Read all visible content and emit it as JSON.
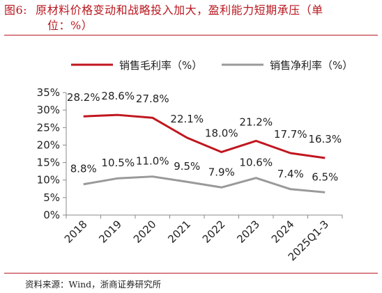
{
  "header": {
    "figure_number": "图6:",
    "title_line1": "原材料价格变动和战略投入加大，盈利能力短期承压（单",
    "title_line2": "位：%）"
  },
  "footer": {
    "source": "资料来源：Wind，浙商证券研究所"
  },
  "colors": {
    "accent": "#b8171f",
    "gross_margin": "#c0161e",
    "net_margin": "#999999"
  },
  "chart_data": {
    "type": "line",
    "categories": [
      "2018",
      "2019",
      "2020",
      "2021",
      "2022",
      "2023",
      "2024",
      "2025Q1-3"
    ],
    "yticks": [
      "0%",
      "5%",
      "10%",
      "15%",
      "20%",
      "25%",
      "30%",
      "35%"
    ],
    "ylim": [
      0,
      35
    ],
    "grid": false,
    "legend_position": "top",
    "series": [
      {
        "name": "销售毛利率（%）",
        "values": [
          28.2,
          28.6,
          27.8,
          22.1,
          18.0,
          21.2,
          17.7,
          16.3
        ],
        "labels": [
          "28.2%",
          "28.6%",
          "27.8%",
          "22.1%",
          "18.0%",
          "21.2%",
          "17.7%",
          "16.3%"
        ]
      },
      {
        "name": "销售净利率（%）",
        "values": [
          8.8,
          10.5,
          11.0,
          9.5,
          7.9,
          10.6,
          7.4,
          6.5
        ],
        "labels": [
          "8.8%",
          "10.5%",
          "11.0%",
          "9.5%",
          "7.9%",
          "10.6%",
          "7.4%",
          "6.5%"
        ]
      }
    ]
  }
}
